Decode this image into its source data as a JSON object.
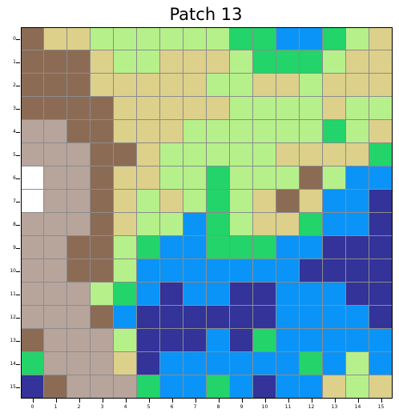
{
  "title": "Patch 13",
  "colors": {
    "B": "#8c6b55",
    "T": "#dcd08a",
    "L": "#b6f08a",
    "G": "#22d46a",
    "A": "#0a94f7",
    "N": "#33339a",
    "R": "#b7a49b",
    "W": "#ffffff"
  },
  "grid": [
    "BTTLLLLLLGGAAGLT",
    "BBBTLLTTTLGGGLTT",
    "BBBTTTTTLLTTLTTT",
    "BBBBTTTTTLLLLTLL",
    "RRBBTTTLLLLLLGLT",
    "RRRBBTLLLLLTTTTG",
    "WRRBTTLLGLLLBLAA",
    "WRRBTLTLGLTBTAAN",
    "RRRBTLLAGLTTGAAN",
    "RRBBLGAAGGGAANNN",
    "RRBBLAAAAAAANNNN",
    "RRRLGANAANNAAANN",
    "RRRBANNNNNNAAAAN",
    "BRRRLNNNANGAAAAA",
    "GRRRTNAAAAAAGALA",
    "NBRRRGAAGANAATLT"
  ],
  "xticks": [
    "0",
    "1",
    "2",
    "3",
    "4",
    "5",
    "6",
    "7",
    "8",
    "9",
    "10",
    "11",
    "12",
    "13",
    "14",
    "15"
  ],
  "yticks": [
    "0",
    "1",
    "2",
    "3",
    "4",
    "5",
    "6",
    "7",
    "8",
    "9",
    "10",
    "11",
    "12",
    "13",
    "14",
    "15"
  ]
}
